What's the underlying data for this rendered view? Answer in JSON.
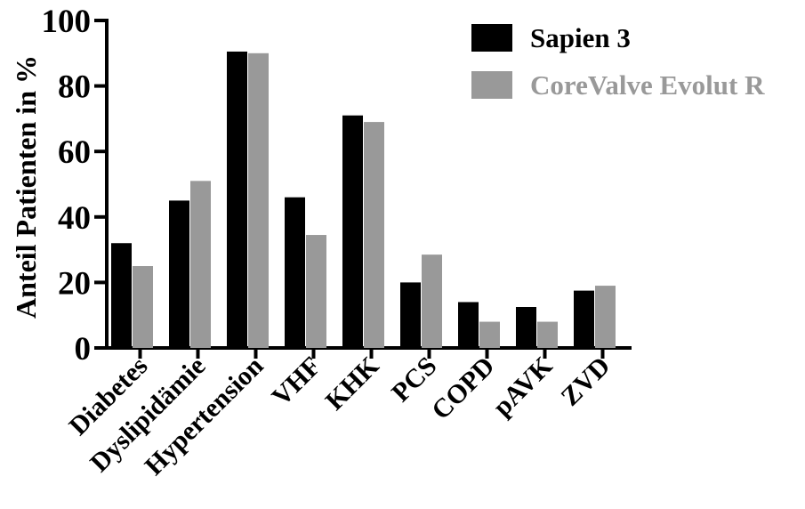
{
  "chart_data": {
    "type": "bar",
    "title": "",
    "xlabel": "",
    "ylabel": "Anteil Patienten in %",
    "ylim": [
      0,
      100
    ],
    "yticks": [
      0,
      20,
      40,
      60,
      80,
      100
    ],
    "categories": [
      "Diabetes",
      "Dyslipidämie",
      "Hypertension",
      "VHF",
      "KHK",
      "PCS",
      "COPD",
      "pAVK",
      "ZVD"
    ],
    "series": [
      {
        "name": "Sapien 3",
        "color": "#000000",
        "values": [
          32,
          45,
          90.5,
          46,
          71,
          20,
          14,
          12.5,
          17.5
        ]
      },
      {
        "name": "CoreValve Evolut R",
        "color": "#999999",
        "values": [
          25,
          51,
          90,
          34.5,
          69,
          28.5,
          8,
          8,
          19
        ]
      }
    ],
    "legend_position": "top-right",
    "grid": false
  }
}
